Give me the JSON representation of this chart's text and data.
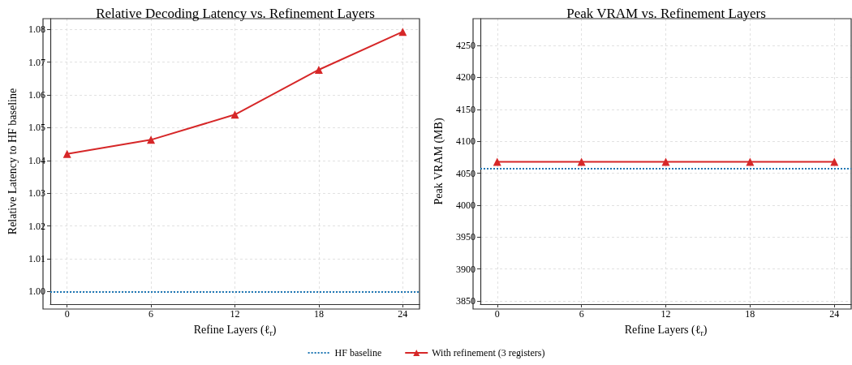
{
  "chart_data": [
    {
      "type": "line",
      "title": "Relative Decoding Latency vs. Refinement Layers",
      "xlabel": "Refine Layers (ℓ$_{r}$)",
      "ylabel": "Relative Latency to HF baseline",
      "x": [
        0,
        6,
        12,
        18,
        24
      ],
      "series": [
        {
          "name": "With refinement (3 registers)",
          "color": "#d62728",
          "values": [
            1.042,
            1.0463,
            1.054,
            1.0677,
            1.0793
          ]
        }
      ],
      "ref_lines": [
        {
          "axis": "y",
          "value": 1.0,
          "label": "HF baseline",
          "color": "#1f77b4",
          "line_style": "dotted"
        }
      ],
      "xlim": [
        -1.2,
        25.2
      ],
      "xticks": [
        0,
        6,
        12,
        18,
        24
      ],
      "ylim": [
        0.9961,
        1.0833
      ],
      "yticks": [
        {
          "value": 1,
          "label": "1.00"
        },
        1.01,
        1.02,
        1.03,
        1.04,
        1.05,
        1.06,
        1.07,
        1.08
      ],
      "grid": true,
      "legend": "bottom",
      "marker": "triangle",
      "line_style": "solid"
    },
    {
      "type": "line",
      "title": "Peak VRAM vs. Refinement Layers",
      "xlabel": "Refine Layers (ℓ$_{r}$)",
      "ylabel": "Peak VRAM (MB)",
      "x": [
        0,
        6,
        12,
        18,
        24
      ],
      "series": [
        {
          "name": "With refinement (3 registers)",
          "color": "#d62728",
          "values": [
            4068,
            4068,
            4068,
            4068,
            4068
          ]
        }
      ],
      "ref_lines": [
        {
          "axis": "y",
          "value": 4058,
          "color": "#1f77b4",
          "line_style": "dotted"
        }
      ],
      "xlim": [
        -1.2,
        25.2
      ],
      "xticks": [
        0,
        6,
        12,
        18,
        24
      ],
      "ylim": [
        3845,
        4292
      ],
      "yticks": [
        3850,
        3900,
        3950,
        4000,
        4050,
        4100,
        4150,
        4200,
        4250
      ],
      "grid": true,
      "legend": "bottom",
      "marker": "triangle",
      "line_style": "solid"
    }
  ]
}
